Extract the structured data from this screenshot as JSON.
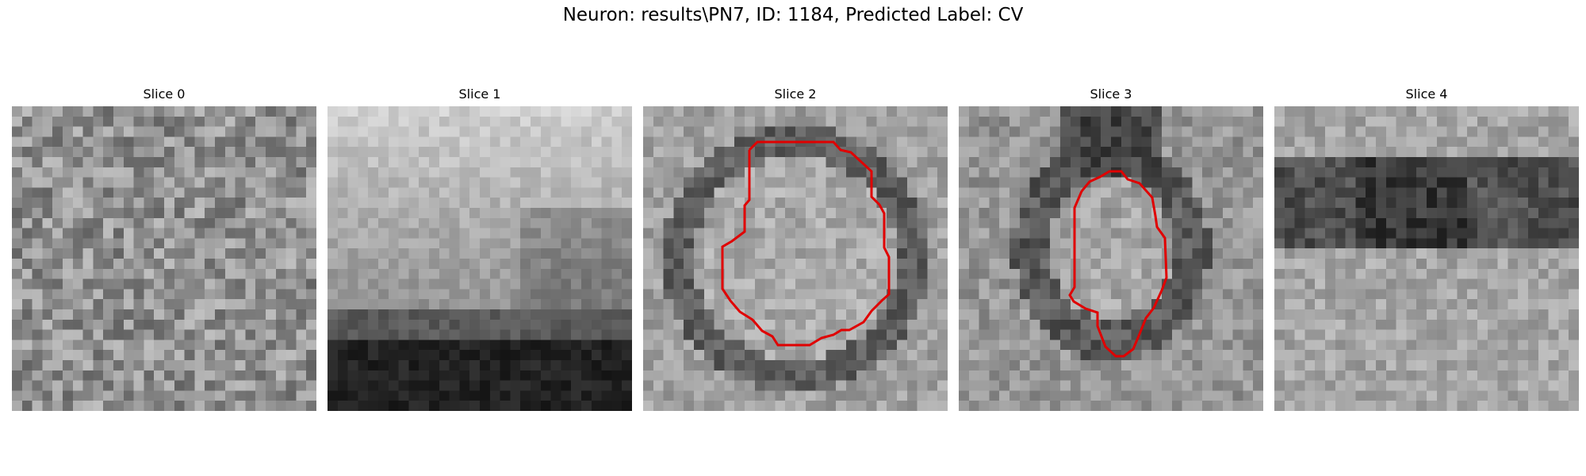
{
  "figure": {
    "title": "Neuron: results\\PN7, ID: 1184, Predicted Label: CV"
  },
  "slices": [
    {
      "title": "Slice 0",
      "pattern": "mottled-texture",
      "contour": false
    },
    {
      "title": "Slice 1",
      "pattern": "bright-top-dark-bottom",
      "contour": false
    },
    {
      "title": "Slice 2",
      "pattern": "ring-vesicle",
      "contour": true
    },
    {
      "title": "Slice 3",
      "pattern": "ring-vesicle-small",
      "contour": true
    },
    {
      "title": "Slice 4",
      "pattern": "dark-band-upper",
      "contour": false
    }
  ],
  "colors": {
    "contour": "#e00000",
    "colormap": "grayscale"
  }
}
